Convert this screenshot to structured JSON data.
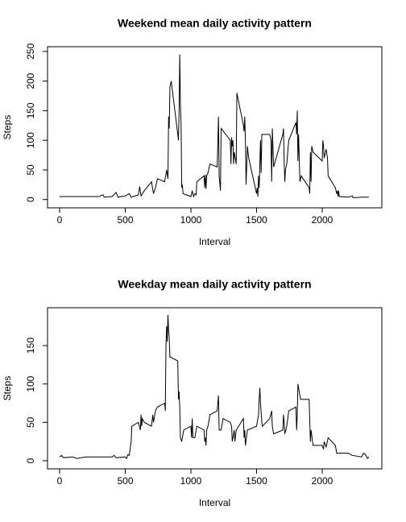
{
  "chart_data": [
    {
      "type": "line",
      "title": "Weekend mean daily activity pattern",
      "xlabel": "Interval",
      "ylabel": "Steps",
      "color": "#000000",
      "xlim": [
        -92,
        2454
      ],
      "ylim": [
        -14,
        258
      ],
      "xticks": [
        0,
        500,
        1000,
        1500,
        2000
      ],
      "yticks": [
        0,
        50,
        100,
        150,
        200,
        250
      ],
      "x": [
        0,
        100,
        200,
        300,
        330,
        340,
        400,
        430,
        445,
        500,
        530,
        545,
        600,
        610,
        620,
        645,
        700,
        715,
        730,
        745,
        800,
        815,
        825,
        830,
        835,
        840,
        845,
        850,
        900,
        905,
        910,
        915,
        920,
        925,
        930,
        935,
        940,
        1000,
        1010,
        1020,
        1030,
        1040,
        1045,
        1100,
        1105,
        1110,
        1115,
        1120,
        1130,
        1145,
        1200,
        1210,
        1215,
        1225,
        1230,
        1300,
        1305,
        1310,
        1315,
        1320,
        1325,
        1330,
        1345,
        1350,
        1400,
        1405,
        1410,
        1415,
        1420,
        1430,
        1440,
        1500,
        1505,
        1510,
        1515,
        1520,
        1530,
        1535,
        1540,
        1600,
        1610,
        1615,
        1620,
        1630,
        1700,
        1705,
        1710,
        1715,
        1720,
        1730,
        1745,
        1800,
        1805,
        1810,
        1815,
        1820,
        1830,
        1840,
        1900,
        1905,
        1910,
        1915,
        1920,
        1930,
        2000,
        2005,
        2010,
        2015,
        2030,
        2040,
        2045,
        2100,
        2110,
        2115,
        2120,
        2125,
        2130,
        2200,
        2230,
        2235,
        2300,
        2355
      ],
      "values": [
        5,
        5,
        5,
        5,
        8,
        4,
        5,
        12,
        4,
        6,
        10,
        4,
        8,
        22,
        6,
        15,
        30,
        10,
        20,
        35,
        30,
        50,
        35,
        140,
        120,
        190,
        195,
        200,
        110,
        100,
        150,
        245,
        160,
        130,
        20,
        25,
        10,
        5,
        15,
        5,
        10,
        8,
        30,
        40,
        20,
        42,
        18,
        40,
        45,
        60,
        55,
        140,
        40,
        15,
        120,
        100,
        60,
        105,
        90,
        100,
        60,
        80,
        60,
        180,
        125,
        115,
        140,
        100,
        25,
        90,
        70,
        10,
        20,
        5,
        40,
        20,
        100,
        45,
        110,
        110,
        100,
        30,
        120,
        55,
        110,
        120,
        65,
        30,
        50,
        60,
        100,
        130,
        110,
        150,
        65,
        110,
        30,
        40,
        20,
        10,
        80,
        30,
        90,
        80,
        65,
        100,
        90,
        70,
        85,
        70,
        40,
        20,
        10,
        15,
        5,
        15,
        5,
        4,
        6,
        3,
        4,
        4
      ]
    },
    {
      "type": "line",
      "title": "Weekday mean daily activity pattern",
      "xlabel": "Interval",
      "ylabel": "Steps",
      "color": "#000000",
      "xlim": [
        -92,
        2454
      ],
      "ylim": [
        -10.5,
        199.3
      ],
      "xticks": [
        0,
        500,
        1000,
        1500,
        2000
      ],
      "yticks": [
        0,
        50,
        100,
        150
      ],
      "x": [
        0,
        15,
        30,
        100,
        130,
        200,
        300,
        400,
        415,
        430,
        500,
        510,
        520,
        530,
        545,
        550,
        600,
        615,
        620,
        625,
        630,
        645,
        700,
        710,
        715,
        730,
        745,
        800,
        805,
        810,
        815,
        820,
        825,
        830,
        835,
        840,
        845,
        900,
        905,
        910,
        915,
        920,
        930,
        945,
        1000,
        1005,
        1010,
        1015,
        1030,
        1045,
        1100,
        1105,
        1110,
        1115,
        1120,
        1130,
        1145,
        1200,
        1210,
        1215,
        1230,
        1245,
        1300,
        1310,
        1315,
        1320,
        1330,
        1335,
        1345,
        1400,
        1405,
        1410,
        1415,
        1430,
        1500,
        1515,
        1520,
        1525,
        1530,
        1540,
        1545,
        1600,
        1615,
        1620,
        1630,
        1700,
        1705,
        1710,
        1715,
        1730,
        1745,
        1800,
        1805,
        1810,
        1815,
        1830,
        1835,
        1900,
        1910,
        1915,
        1930,
        2000,
        2010,
        2015,
        2030,
        2045,
        2100,
        2110,
        2200,
        2215,
        2230,
        2300,
        2315,
        2330,
        2345,
        2355
      ],
      "values": [
        5,
        7,
        4,
        5,
        3,
        5,
        5,
        5,
        7,
        4,
        5,
        3,
        8,
        7,
        25,
        45,
        50,
        40,
        60,
        45,
        55,
        50,
        45,
        60,
        50,
        65,
        70,
        75,
        65,
        150,
        175,
        155,
        190,
        170,
        160,
        135,
        135,
        130,
        80,
        90,
        70,
        30,
        25,
        40,
        45,
        30,
        55,
        30,
        30,
        45,
        40,
        25,
        30,
        20,
        40,
        45,
        60,
        65,
        85,
        40,
        40,
        55,
        50,
        45,
        25,
        30,
        40,
        25,
        40,
        55,
        30,
        40,
        20,
        40,
        45,
        60,
        80,
        95,
        75,
        50,
        45,
        55,
        65,
        45,
        35,
        40,
        60,
        50,
        35,
        45,
        65,
        70,
        40,
        60,
        100,
        85,
        80,
        80,
        25,
        40,
        20,
        20,
        15,
        25,
        18,
        30,
        20,
        10,
        10,
        8,
        7,
        5,
        10,
        8,
        3,
        5
      ]
    }
  ]
}
